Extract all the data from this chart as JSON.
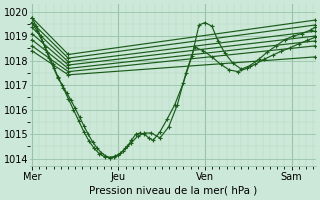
{
  "bg_color": "#cce8d8",
  "grid_color_major": "#99c4aa",
  "grid_color_minor": "#b8d8c4",
  "line_color": "#1a5c1a",
  "ylabel_text": "Pression niveau de la mer( hPa )",
  "xtick_labels": [
    "Mer",
    "Jeu",
    "Ven",
    "Sam"
  ],
  "xtick_positions": [
    0.0,
    1.0,
    2.0,
    3.0
  ],
  "ylim": [
    1013.7,
    1020.3
  ],
  "yticks": [
    1014,
    1015,
    1016,
    1017,
    1018,
    1019,
    1020
  ],
  "xlim": [
    -0.02,
    3.28
  ],
  "fan_lines": {
    "starts_x": 0.0,
    "mid_x": 0.42,
    "end_x": 3.27,
    "starts_y": [
      1019.75,
      1019.55,
      1019.35,
      1019.1,
      1018.85,
      1018.6,
      1018.4
    ],
    "mids_y": [
      1018.25,
      1018.1,
      1017.95,
      1017.82,
      1017.68,
      1017.55,
      1017.42
    ],
    "ends_y": [
      1019.65,
      1019.45,
      1019.2,
      1019.0,
      1018.8,
      1018.6,
      1018.15
    ]
  },
  "deep_line1_x": [
    0.0,
    0.05,
    0.1,
    0.15,
    0.2,
    0.25,
    0.3,
    0.35,
    0.4,
    0.45,
    0.5,
    0.55,
    0.6,
    0.65,
    0.7,
    0.75,
    0.8,
    0.85,
    0.9,
    0.95,
    1.0,
    1.05,
    1.1,
    1.15,
    1.2,
    1.25,
    1.3,
    1.35,
    1.4,
    1.48,
    1.56,
    1.65,
    1.75,
    1.85,
    1.93,
    2.0,
    2.08,
    2.15,
    2.23,
    2.32,
    2.42,
    2.52,
    2.62,
    2.72,
    2.82,
    2.92,
    3.02,
    3.12,
    3.22,
    3.27
  ],
  "deep_line1_y": [
    1019.75,
    1019.4,
    1019.0,
    1018.55,
    1018.1,
    1017.7,
    1017.3,
    1017.0,
    1016.7,
    1016.4,
    1016.05,
    1015.7,
    1015.35,
    1015.0,
    1014.7,
    1014.45,
    1014.25,
    1014.12,
    1014.05,
    1014.08,
    1014.15,
    1014.3,
    1014.5,
    1014.75,
    1015.0,
    1015.05,
    1015.0,
    1014.85,
    1014.75,
    1015.1,
    1015.6,
    1016.2,
    1017.1,
    1018.2,
    1019.45,
    1019.55,
    1019.4,
    1018.8,
    1018.3,
    1017.9,
    1017.65,
    1017.8,
    1018.05,
    1018.35,
    1018.6,
    1018.85,
    1019.0,
    1019.1,
    1019.25,
    1019.35
  ],
  "deep_line2_x": [
    0.0,
    0.06,
    0.12,
    0.18,
    0.24,
    0.3,
    0.36,
    0.42,
    0.48,
    0.54,
    0.6,
    0.66,
    0.72,
    0.78,
    0.84,
    0.9,
    0.96,
    1.02,
    1.08,
    1.15,
    1.22,
    1.3,
    1.38,
    1.48,
    1.58,
    1.68,
    1.78,
    1.88,
    1.98,
    2.08,
    2.18,
    2.28,
    2.38,
    2.48,
    2.58,
    2.68,
    2.78,
    2.88,
    2.98,
    3.08,
    3.18,
    3.27
  ],
  "deep_line2_y": [
    1019.55,
    1019.2,
    1018.8,
    1018.35,
    1017.85,
    1017.35,
    1016.9,
    1016.45,
    1016.0,
    1015.55,
    1015.1,
    1014.72,
    1014.42,
    1014.2,
    1014.08,
    1014.05,
    1014.1,
    1014.22,
    1014.42,
    1014.65,
    1014.92,
    1015.05,
    1015.05,
    1014.85,
    1015.3,
    1016.2,
    1017.5,
    1018.55,
    1018.4,
    1018.15,
    1017.85,
    1017.62,
    1017.55,
    1017.68,
    1017.85,
    1018.05,
    1018.22,
    1018.38,
    1018.52,
    1018.68,
    1018.82,
    1018.95
  ],
  "vline_positions": [
    0.0,
    1.0,
    2.0,
    3.0
  ]
}
